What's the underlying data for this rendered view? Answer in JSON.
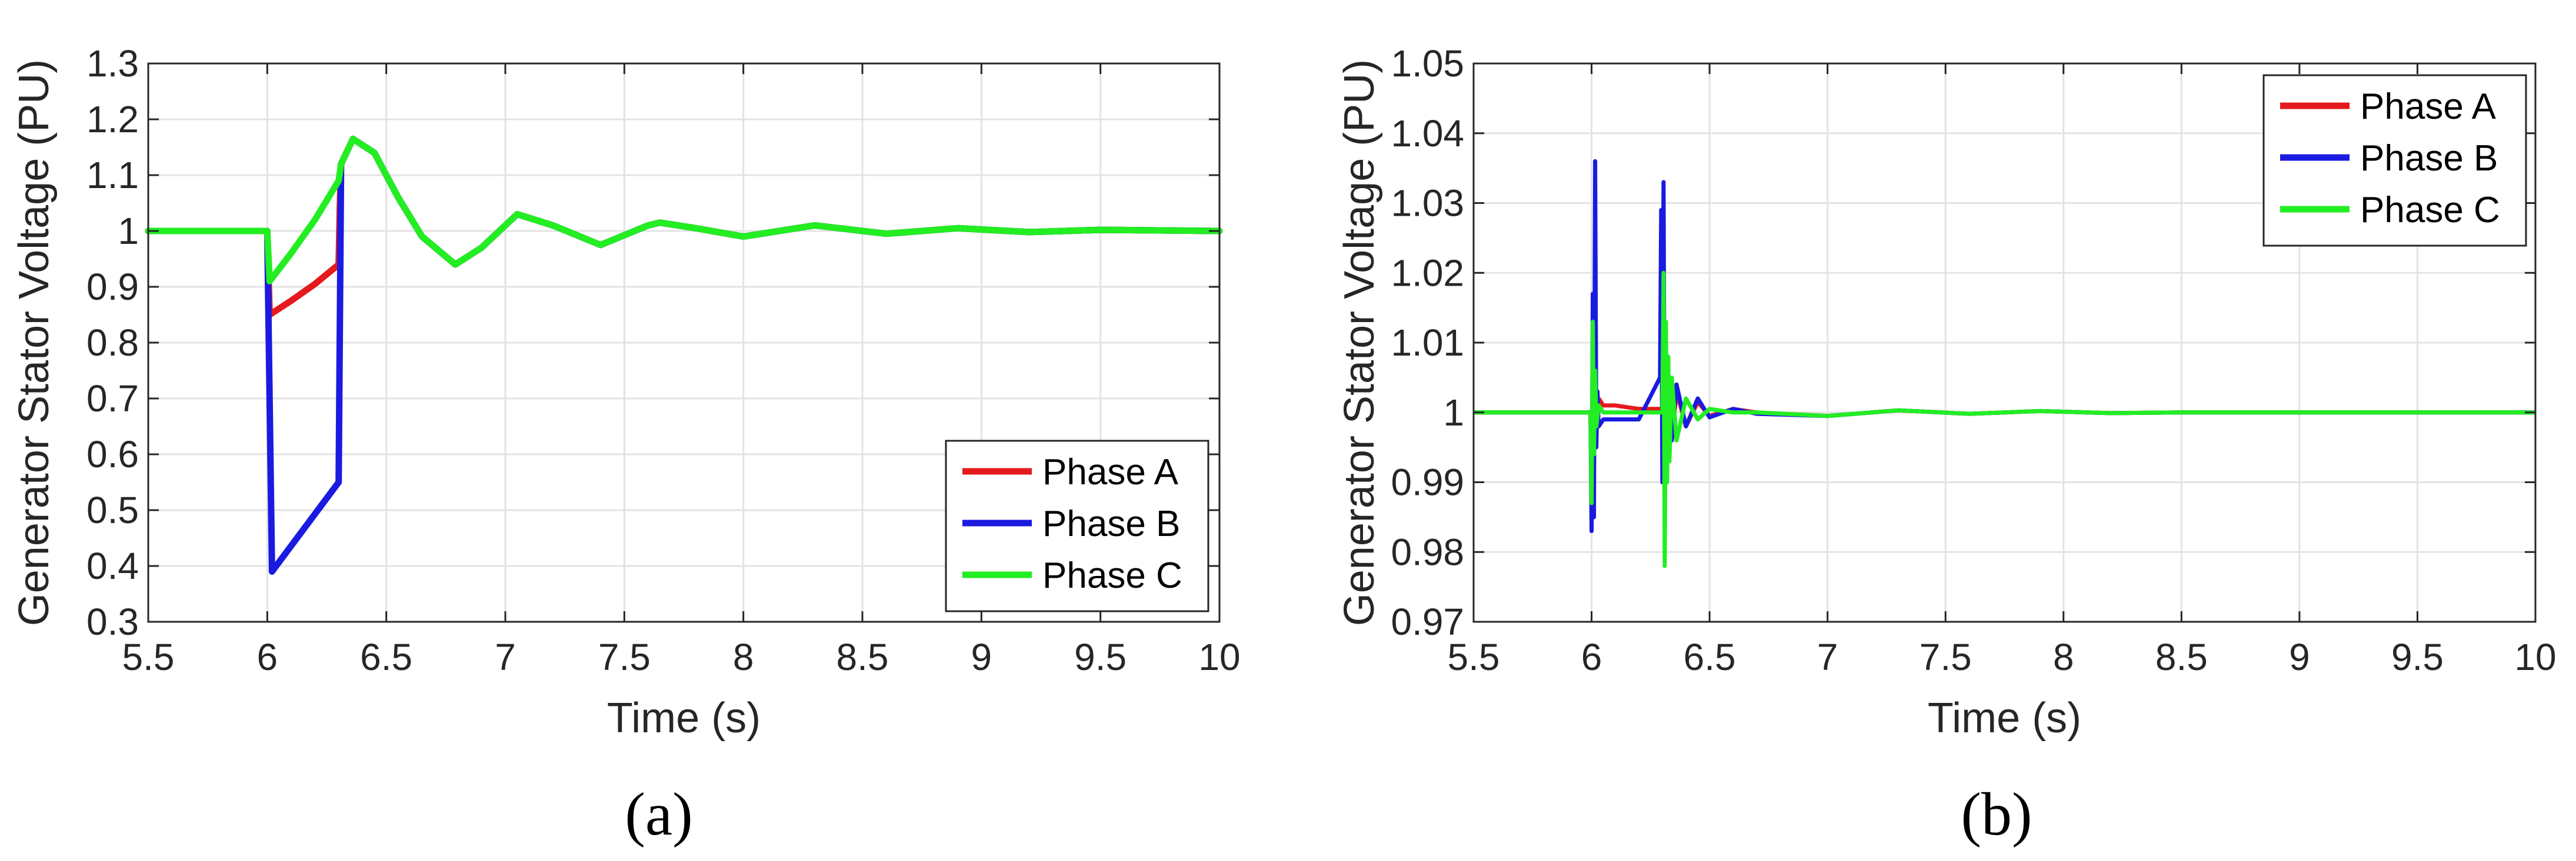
{
  "chart_data": [
    {
      "id": "a",
      "type": "line",
      "caption": "(a)",
      "xlabel": "Time (s)",
      "ylabel": "Generator Stator Voltage (PU)",
      "xlim": [
        5.5,
        10
      ],
      "ylim": [
        0.3,
        1.3
      ],
      "xticks": [
        5.5,
        6,
        6.5,
        7,
        7.5,
        8,
        8.5,
        9,
        9.5,
        10
      ],
      "xtick_labels": [
        "5.5",
        "6",
        "6.5",
        "7",
        "7.5",
        "8",
        "8.5",
        "9",
        "9.5",
        "10"
      ],
      "yticks": [
        0.3,
        0.4,
        0.5,
        0.6,
        0.7,
        0.8,
        0.9,
        1.0,
        1.1,
        1.2,
        1.3
      ],
      "ytick_labels": [
        "0.3",
        "0.4",
        "0.5",
        "0.6",
        "0.7",
        "0.8",
        "0.9",
        "1",
        "1.1",
        "1.2",
        "1.3"
      ],
      "grid": true,
      "legend_position": "bottom-right",
      "series": [
        {
          "name": "Phase A",
          "color": "#e41a1c",
          "x": [
            5.5,
            5.99,
            6.0,
            6.01,
            6.1,
            6.2,
            6.3,
            6.305,
            6.31,
            6.36,
            6.45,
            6.55,
            6.65,
            6.79,
            6.9,
            7.05,
            7.2,
            7.4,
            7.6,
            7.65,
            7.8,
            8.0,
            8.3,
            8.6,
            8.9,
            9.2,
            9.5,
            10.0
          ],
          "y": [
            1.0,
            1.0,
            1.0,
            0.85,
            0.875,
            0.905,
            0.94,
            1.05,
            1.12,
            1.165,
            1.14,
            1.06,
            0.99,
            0.94,
            0.97,
            1.03,
            1.01,
            0.975,
            1.01,
            1.015,
            1.005,
            0.99,
            1.01,
            0.995,
            1.005,
            0.998,
            1.002,
            1.0
          ]
        },
        {
          "name": "Phase B",
          "color": "#1a1ae0",
          "x": [
            5.5,
            5.99,
            6.0,
            6.02,
            6.3,
            6.31,
            6.36,
            6.45,
            6.55,
            6.65,
            6.79,
            6.9,
            7.05,
            7.2,
            7.4,
            7.6,
            7.65,
            7.8,
            8.0,
            8.3,
            8.6,
            8.9,
            9.2,
            9.5,
            10.0
          ],
          "y": [
            1.0,
            1.0,
            1.0,
            0.39,
            0.55,
            1.12,
            1.165,
            1.14,
            1.06,
            0.99,
            0.94,
            0.97,
            1.03,
            1.01,
            0.975,
            1.01,
            1.015,
            1.005,
            0.99,
            1.01,
            0.995,
            1.005,
            0.998,
            1.002,
            1.0
          ]
        },
        {
          "name": "Phase C",
          "color": "#22ee22",
          "x": [
            5.5,
            5.99,
            6.0,
            6.01,
            6.1,
            6.2,
            6.3,
            6.31,
            6.36,
            6.45,
            6.55,
            6.65,
            6.79,
            6.9,
            7.05,
            7.2,
            7.4,
            7.6,
            7.65,
            7.8,
            8.0,
            8.3,
            8.6,
            8.9,
            9.2,
            9.5,
            10.0
          ],
          "y": [
            1.0,
            1.0,
            1.0,
            0.91,
            0.96,
            1.02,
            1.09,
            1.12,
            1.165,
            1.14,
            1.06,
            0.99,
            0.94,
            0.97,
            1.03,
            1.01,
            0.975,
            1.01,
            1.015,
            1.005,
            0.99,
            1.01,
            0.995,
            1.005,
            0.998,
            1.002,
            1.0
          ]
        }
      ]
    },
    {
      "id": "b",
      "type": "line",
      "caption": "(b)",
      "xlabel": "Time (s)",
      "ylabel": "Generator Stator Voltage (PU)",
      "xlim": [
        5.5,
        10
      ],
      "ylim": [
        0.97,
        1.05
      ],
      "xticks": [
        5.5,
        6,
        6.5,
        7,
        7.5,
        8,
        8.5,
        9,
        9.5,
        10
      ],
      "xtick_labels": [
        "5.5",
        "6",
        "6.5",
        "7",
        "7.5",
        "8",
        "8.5",
        "9",
        "9.5",
        "10"
      ],
      "yticks": [
        0.97,
        0.98,
        0.99,
        1.0,
        1.01,
        1.02,
        1.03,
        1.04,
        1.05
      ],
      "ytick_labels": [
        "0.97",
        "0.98",
        "0.99",
        "1",
        "1.01",
        "1.02",
        "1.03",
        "1.04",
        "1.05"
      ],
      "grid": true,
      "legend_position": "top-right",
      "series": [
        {
          "name": "Phase A",
          "color": "#e41a1c",
          "x": [
            5.5,
            5.995,
            6.0,
            6.005,
            6.01,
            6.015,
            6.02,
            6.03,
            6.05,
            6.1,
            6.2,
            6.3,
            6.305,
            6.31,
            6.315,
            6.32,
            6.33,
            6.34,
            6.36,
            6.4,
            6.45,
            6.5,
            6.6,
            6.7,
            7.0,
            7.3,
            7.6,
            7.9,
            8.2,
            8.5,
            10.0
          ],
          "y": [
            1.0,
            1.0,
            0.992,
            1.008,
            0.995,
            1.006,
            1.0,
            1.002,
            1.001,
            1.001,
            1.0005,
            1.0005,
            1.01,
            0.99,
            1.006,
            0.993,
            1.004,
            0.996,
            1.003,
            0.998,
            1.0015,
            0.9995,
            1.0005,
            1.0,
            0.9995,
            1.0003,
            0.9998,
            1.0002,
            0.9999,
            1.0,
            1.0
          ]
        },
        {
          "name": "Phase B",
          "color": "#1a1ae0",
          "x": [
            5.5,
            5.995,
            6.0,
            6.005,
            6.01,
            6.015,
            6.02,
            6.025,
            6.03,
            6.05,
            6.1,
            6.2,
            6.29,
            6.295,
            6.3,
            6.305,
            6.31,
            6.315,
            6.32,
            6.33,
            6.34,
            6.36,
            6.4,
            6.45,
            6.5,
            6.6,
            6.7,
            7.0,
            7.3,
            7.6,
            7.9,
            8.2,
            8.5,
            10.0
          ],
          "y": [
            1.0,
            1.0,
            0.983,
            1.017,
            0.985,
            1.036,
            0.995,
            1.003,
            0.998,
            0.999,
            0.999,
            0.999,
            1.005,
            1.029,
            0.99,
            1.033,
            0.988,
            1.01,
            0.992,
            1.005,
            0.996,
            1.004,
            0.998,
            1.002,
            0.9993,
            1.0005,
            0.9998,
            0.9995,
            1.0003,
            0.9998,
            1.0002,
            0.9999,
            1.0,
            1.0
          ]
        },
        {
          "name": "Phase C",
          "color": "#22ee22",
          "x": [
            5.5,
            5.995,
            6.0,
            6.005,
            6.01,
            6.015,
            6.02,
            6.03,
            6.05,
            6.1,
            6.2,
            6.3,
            6.305,
            6.31,
            6.315,
            6.32,
            6.325,
            6.33,
            6.34,
            6.36,
            6.4,
            6.45,
            6.5,
            6.6,
            6.7,
            7.0,
            7.3,
            7.6,
            7.9,
            8.2,
            8.5,
            10.0
          ],
          "y": [
            1.0,
            1.0,
            0.987,
            1.013,
            0.994,
            1.006,
            0.998,
            1.001,
            1.0,
            1.0,
            1.0,
            1.0,
            1.02,
            0.978,
            1.013,
            0.99,
            1.008,
            0.993,
            1.005,
            0.996,
            1.002,
            0.999,
            1.0005,
            1.0,
            1.0,
            0.9995,
            1.0003,
            0.9998,
            1.0002,
            0.9999,
            1.0,
            1.0
          ]
        }
      ]
    }
  ]
}
